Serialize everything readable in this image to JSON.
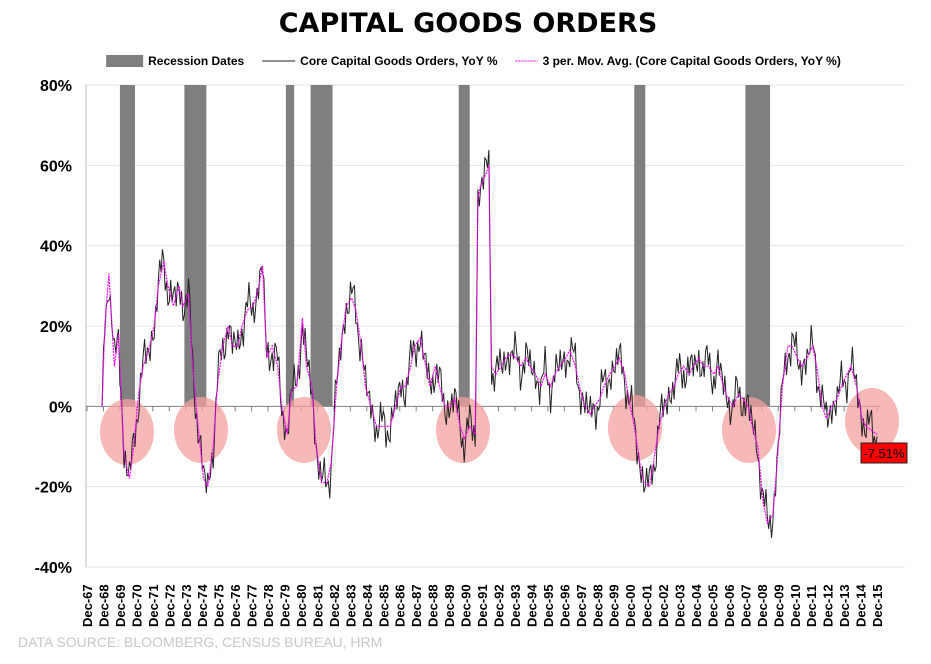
{
  "chart_data": {
    "type": "line",
    "title": "CAPITAL GOODS ORDERS",
    "source": "DATA SOURCE:  BLOOMBERG, CENSUS BUREAU, HRM",
    "xlabel": "",
    "ylabel": "",
    "ylim": [
      -40,
      80
    ],
    "y_ticks": [
      "80%",
      "60%",
      "40%",
      "20%",
      "0%",
      "-20%",
      "-40%"
    ],
    "y_tick_values": [
      80,
      60,
      40,
      20,
      0,
      -20,
      -40
    ],
    "x_ticks": [
      "Dec-67",
      "Dec-68",
      "Dec-69",
      "Dec-70",
      "Dec-71",
      "Dec-72",
      "Dec-73",
      "Dec-74",
      "Dec-75",
      "Dec-76",
      "Dec-77",
      "Dec-78",
      "Dec-79",
      "Dec-80",
      "Dec-81",
      "Dec-82",
      "Dec-83",
      "Dec-84",
      "Dec-85",
      "Dec-86",
      "Dec-87",
      "Dec-88",
      "Dec-89",
      "Dec-90",
      "Dec-91",
      "Dec-92",
      "Dec-93",
      "Dec-94",
      "Dec-95",
      "Dec-96",
      "Dec-97",
      "Dec-98",
      "Dec-99",
      "Dec-00",
      "Dec-01",
      "Dec-02",
      "Dec-03",
      "Dec-04",
      "Dec-05",
      "Dec-06",
      "Dec-07",
      "Dec-08",
      "Dec-09",
      "Dec-10",
      "Dec-11",
      "Dec-12",
      "Dec-13",
      "Dec-14",
      "Dec-15"
    ],
    "grid": "horizontal",
    "legend_position": "top",
    "legend": [
      "Recession Dates",
      "Core Capital Goods Orders, YoY %",
      "3 per. Mov. Avg. (Core Capital Goods Orders, YoY %)"
    ],
    "colors": {
      "recession": "#7f7f7f",
      "core": "#222222",
      "moving_avg": "#ff00ff",
      "highlight": "#f4a0a0",
      "callout": "#ff0000"
    },
    "recessions": [
      [
        "1969-12",
        "1970-11"
      ],
      [
        "1973-11",
        "1975-03"
      ],
      [
        "1980-01",
        "1980-07"
      ],
      [
        "1981-07",
        "1982-11"
      ],
      [
        "1990-07",
        "1991-03"
      ],
      [
        "2001-03",
        "2001-11"
      ],
      [
        "2007-12",
        "2009-06"
      ]
    ],
    "series": [
      {
        "name": "3 per. Mov. Avg. (Core Capital Goods Orders, YoY %)",
        "points": [
          [
            "1968-11",
            0
          ],
          [
            "1969-01",
            20
          ],
          [
            "1969-04",
            33
          ],
          [
            "1969-08",
            10
          ],
          [
            "1969-11",
            18
          ],
          [
            "1970-03",
            -12
          ],
          [
            "1970-07",
            -18
          ],
          [
            "1970-10",
            -10
          ],
          [
            "1971-02",
            4
          ],
          [
            "1971-05",
            10
          ],
          [
            "1971-09",
            14
          ],
          [
            "1972-01",
            20
          ],
          [
            "1972-04",
            30
          ],
          [
            "1972-08",
            36
          ],
          [
            "1972-11",
            30
          ],
          [
            "1973-03",
            25
          ],
          [
            "1973-07",
            30
          ],
          [
            "1973-10",
            25
          ],
          [
            "1974-02",
            28
          ],
          [
            "1974-05",
            10
          ],
          [
            "1974-09",
            -5
          ],
          [
            "1975-01",
            -18
          ],
          [
            "1975-04",
            -20
          ],
          [
            "1975-08",
            -10
          ],
          [
            "1975-11",
            5
          ],
          [
            "1976-03",
            15
          ],
          [
            "1976-07",
            20
          ],
          [
            "1976-10",
            15
          ],
          [
            "1977-02",
            15
          ],
          [
            "1977-05",
            20
          ],
          [
            "1977-09",
            24
          ],
          [
            "1978-01",
            25
          ],
          [
            "1978-04",
            28
          ],
          [
            "1978-08",
            35
          ],
          [
            "1978-11",
            12
          ],
          [
            "1979-03",
            15
          ],
          [
            "1979-07",
            10
          ],
          [
            "1979-10",
            0
          ],
          [
            "1980-02",
            -7
          ],
          [
            "1980-05",
            4
          ],
          [
            "1980-09",
            5
          ],
          [
            "1981-01",
            22
          ],
          [
            "1981-04",
            10
          ],
          [
            "1981-08",
            5
          ],
          [
            "1981-11",
            -10
          ],
          [
            "1982-03",
            -19
          ],
          [
            "1982-07",
            -19
          ],
          [
            "1982-10",
            -14
          ],
          [
            "1983-02",
            5
          ],
          [
            "1983-05",
            15
          ],
          [
            "1983-09",
            25
          ],
          [
            "1984-01",
            27
          ],
          [
            "1984-04",
            24
          ],
          [
            "1984-08",
            15
          ],
          [
            "1984-11",
            5
          ],
          [
            "1985-03",
            0
          ],
          [
            "1985-07",
            -5
          ],
          [
            "1985-10",
            -5
          ],
          [
            "1986-02",
            -5
          ],
          [
            "1986-05",
            -5
          ],
          [
            "1986-09",
            0
          ],
          [
            "1987-01",
            5
          ],
          [
            "1987-04",
            5
          ],
          [
            "1987-08",
            10
          ],
          [
            "1987-11",
            15
          ],
          [
            "1988-03",
            17
          ],
          [
            "1988-07",
            10
          ],
          [
            "1988-10",
            5
          ],
          [
            "1989-02",
            10
          ],
          [
            "1989-05",
            5
          ],
          [
            "1989-09",
            0
          ],
          [
            "1990-01",
            0
          ],
          [
            "1990-04",
            2
          ],
          [
            "1990-08",
            -5
          ],
          [
            "1990-11",
            -8
          ],
          [
            "1991-03",
            -5
          ],
          [
            "1991-07",
            -7
          ],
          [
            "1991-09",
            52
          ],
          [
            "1991-11",
            55
          ],
          [
            "1992-03",
            58
          ],
          [
            "1992-05",
            60
          ],
          [
            "1992-07",
            10
          ],
          [
            "1992-10",
            8
          ],
          [
            "1993-02",
            10
          ],
          [
            "1993-05",
            12
          ],
          [
            "1993-09",
            13
          ],
          [
            "1994-01",
            12
          ],
          [
            "1994-04",
            10
          ],
          [
            "1994-08",
            12
          ],
          [
            "1994-11",
            10
          ],
          [
            "1995-03",
            8
          ],
          [
            "1995-07",
            5
          ],
          [
            "1995-10",
            8
          ],
          [
            "1996-02",
            5
          ],
          [
            "1996-05",
            8
          ],
          [
            "1996-09",
            10
          ],
          [
            "1997-01",
            12
          ],
          [
            "1997-04",
            14
          ],
          [
            "1997-08",
            10
          ],
          [
            "1997-11",
            5
          ],
          [
            "1998-03",
            0
          ],
          [
            "1998-07",
            -2
          ],
          [
            "1998-10",
            0
          ],
          [
            "1999-02",
            2
          ],
          [
            "1999-05",
            5
          ],
          [
            "1999-09",
            8
          ],
          [
            "2000-01",
            10
          ],
          [
            "2000-04",
            12
          ],
          [
            "2000-08",
            8
          ],
          [
            "2000-11",
            2
          ],
          [
            "2001-03",
            -5
          ],
          [
            "2001-07",
            -14
          ],
          [
            "2001-10",
            -19
          ],
          [
            "2002-02",
            -20
          ],
          [
            "2002-05",
            -14
          ],
          [
            "2002-09",
            -5
          ],
          [
            "2003-01",
            0
          ],
          [
            "2003-04",
            3
          ],
          [
            "2003-08",
            5
          ],
          [
            "2003-11",
            8
          ],
          [
            "2004-03",
            10
          ],
          [
            "2004-07",
            8
          ],
          [
            "2004-10",
            10
          ],
          [
            "2005-02",
            12
          ],
          [
            "2005-05",
            10
          ],
          [
            "2005-09",
            10
          ],
          [
            "2006-01",
            8
          ],
          [
            "2006-04",
            10
          ],
          [
            "2006-08",
            5
          ],
          [
            "2006-11",
            2
          ],
          [
            "2007-03",
            0
          ],
          [
            "2007-07",
            3
          ],
          [
            "2007-10",
            2
          ],
          [
            "2008-02",
            0
          ],
          [
            "2008-05",
            -5
          ],
          [
            "2008-09",
            -10
          ],
          [
            "2009-01",
            -24
          ],
          [
            "2009-04",
            -29
          ],
          [
            "2009-08",
            -27
          ],
          [
            "2009-11",
            -15
          ],
          [
            "2010-03",
            5
          ],
          [
            "2010-07",
            15
          ],
          [
            "2010-10",
            15
          ],
          [
            "2011-02",
            12
          ],
          [
            "2011-05",
            10
          ],
          [
            "2011-09",
            12
          ],
          [
            "2012-01",
            15
          ],
          [
            "2012-04",
            10
          ],
          [
            "2012-08",
            0
          ],
          [
            "2012-11",
            -3
          ],
          [
            "2013-03",
            0
          ],
          [
            "2013-07",
            2
          ],
          [
            "2013-10",
            5
          ],
          [
            "2014-02",
            8
          ],
          [
            "2014-05",
            10
          ],
          [
            "2014-09",
            5
          ],
          [
            "2015-01",
            -3
          ],
          [
            "2015-04",
            -5
          ],
          [
            "2015-08",
            -6
          ],
          [
            "2015-12",
            -7
          ]
        ]
      },
      {
        "name": "Core Capital Goods Orders, YoY %",
        "last_value": -7.51,
        "last_label": "-7.51%"
      }
    ]
  }
}
